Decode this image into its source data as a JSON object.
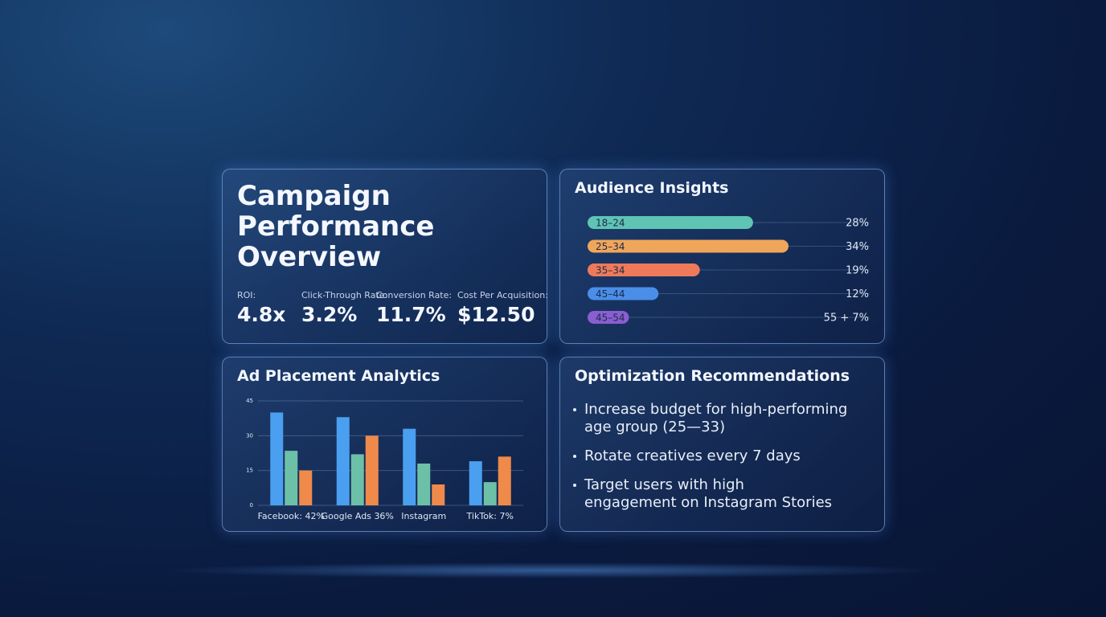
{
  "performance": {
    "title": [
      "Campaign",
      "Performance",
      "Overview"
    ],
    "metrics": [
      {
        "label": "ROI:",
        "value": "4.8x"
      },
      {
        "label": "Click-Through Rate:",
        "value": "3.2%"
      },
      {
        "label": "Conversion Rate:",
        "value": "11.7%"
      },
      {
        "label": "Cost Per Acquisition:",
        "value": "$12.50"
      }
    ]
  },
  "audience": {
    "title": "Audience Insights",
    "chart_data": {
      "type": "hbar",
      "categories": [
        "18–24",
        "25–34",
        "35–34",
        "45–44",
        "45–54"
      ],
      "colors": [
        "#5fc4b4",
        "#f0a65a",
        "#ee7a5a",
        "#4a8ee8",
        "#8a5ed0"
      ],
      "values": [
        28,
        34,
        19,
        12,
        7
      ],
      "value_labels": [
        "28%",
        "34%",
        "19%",
        "12%",
        "55 + 7%"
      ]
    }
  },
  "placement": {
    "title": "Ad Placement Analytics",
    "chart_data": {
      "type": "bar",
      "categories": [
        "Facebook: 42%",
        "Google Ads 36%",
        "Instagram",
        "TikTok: 7%"
      ],
      "series": [
        {
          "color": "#4a9ff0",
          "values": [
            40,
            38,
            33,
            19
          ]
        },
        {
          "color": "#6cc0a8",
          "values": [
            23.5,
            22,
            18,
            10
          ]
        },
        {
          "color": "#f08a4a",
          "values": [
            15,
            30,
            9,
            21
          ]
        }
      ],
      "ylim": [
        0,
        45
      ],
      "yticks": [
        0,
        15,
        30,
        45
      ],
      "grid": true
    }
  },
  "recommendations": {
    "title": "Optimization Recommendations",
    "items": [
      [
        "Increase budget for high-performing",
        "age group (25—33)"
      ],
      [
        "Rotate creatives every 7 days"
      ],
      [
        "Target users with high",
        "engagement on Instagram Stories"
      ]
    ]
  }
}
